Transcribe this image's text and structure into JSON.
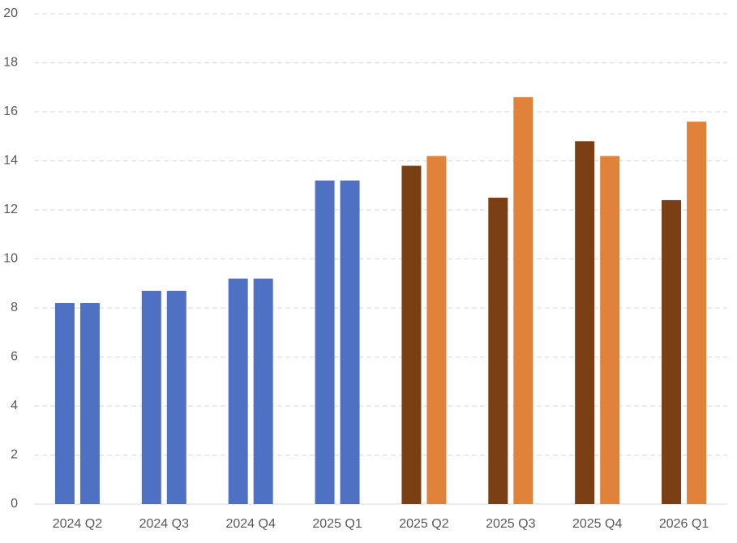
{
  "chart_data": {
    "type": "bar",
    "categories": [
      "2024 Q2",
      "2024 Q3",
      "2024 Q4",
      "2025 Q1",
      "2025 Q2",
      "2025 Q3",
      "2025 Q4",
      "2026 Q1"
    ],
    "series": [
      {
        "colors": [
          "#4f71c4",
          "#4f71c4",
          "#4f71c4",
          "#4f71c4",
          "#7b3f14",
          "#7b3f14",
          "#7b3f14",
          "#7b3f14"
        ],
        "values": [
          8.2,
          8.7,
          9.2,
          13.2,
          13.8,
          12.5,
          14.8,
          12.4
        ]
      },
      {
        "colors": [
          "#4f71c4",
          "#4f71c4",
          "#4f71c4",
          "#4f71c4",
          "#e0823a",
          "#e0823a",
          "#e0823a",
          "#e0823a"
        ],
        "values": [
          8.2,
          8.7,
          9.2,
          13.2,
          14.2,
          16.6,
          14.2,
          15.6
        ]
      }
    ],
    "ylim": [
      0,
      20
    ],
    "yticks": [
      0,
      2,
      4,
      6,
      8,
      10,
      12,
      14,
      16,
      18,
      20
    ],
    "grid": true
  }
}
